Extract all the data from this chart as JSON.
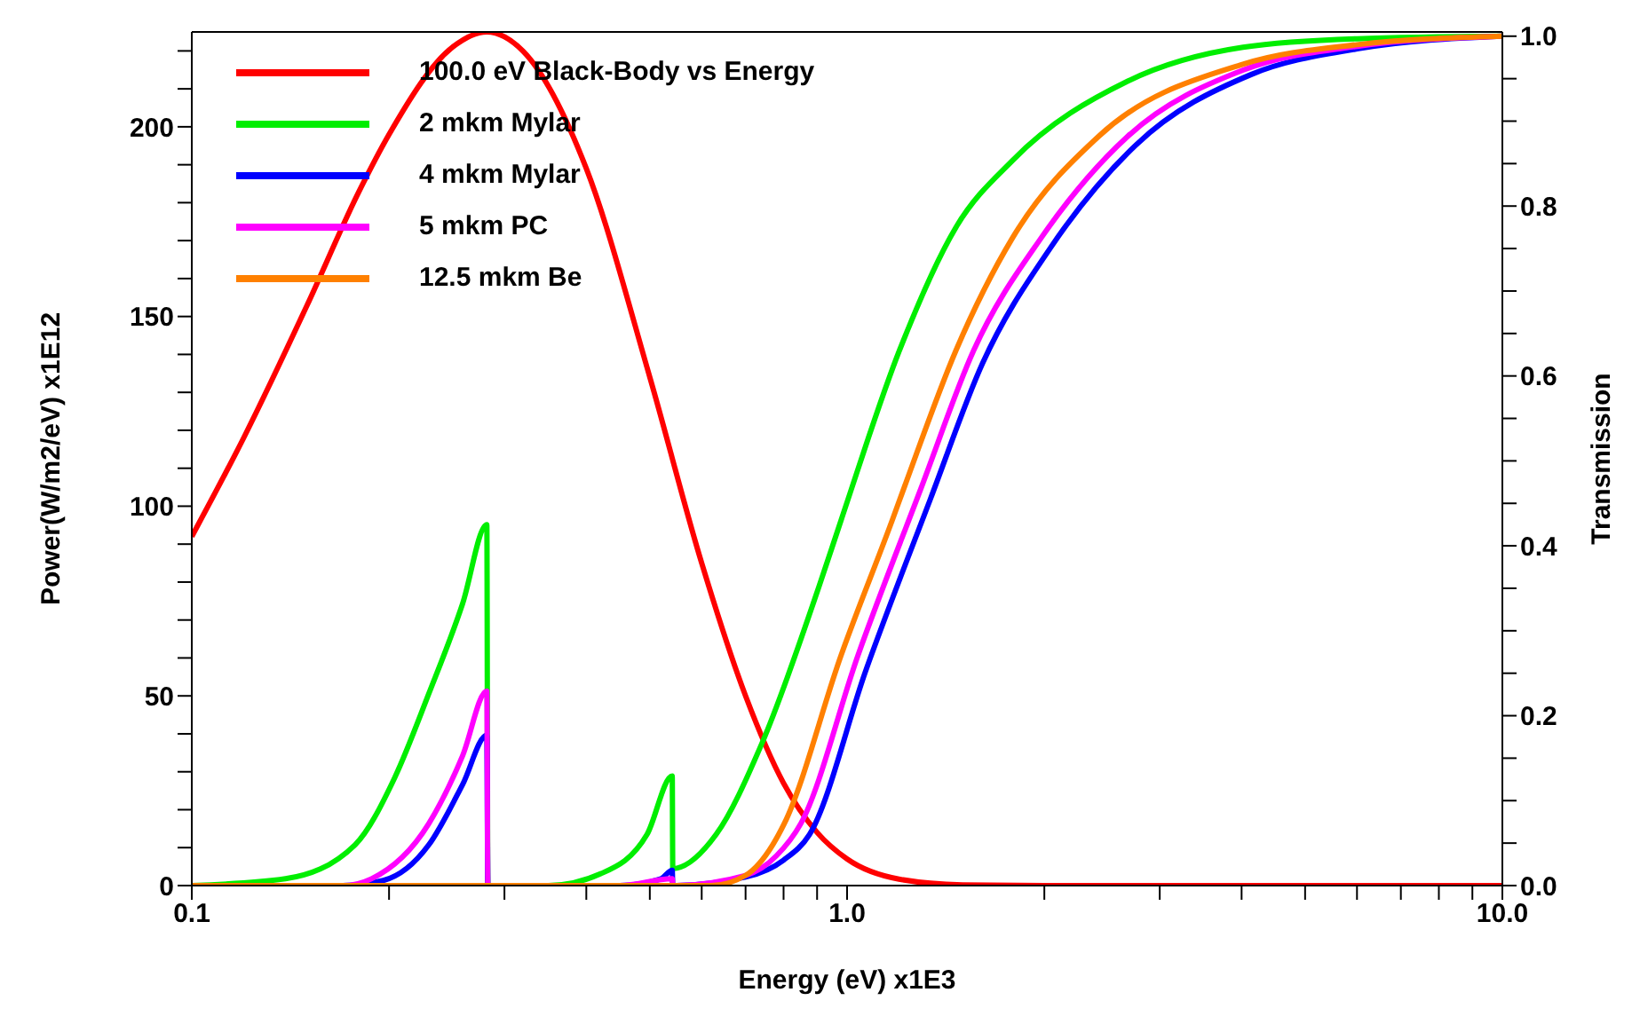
{
  "chart_data": {
    "type": "line",
    "xlabel": "Energy (eV) x1E3",
    "ylabel": "Power(W/m2/eV) x1E12",
    "y2label": "Transmission",
    "log": "x",
    "grid": false,
    "legend": "top left",
    "marker": "none",
    "line_style": "solid",
    "xlim": [
      0.1,
      10
    ],
    "xticks": [
      {
        "value": 0.1,
        "label": "0.1"
      },
      {
        "value": 0.2,
        "label": null
      },
      {
        "value": 0.3,
        "label": null
      },
      {
        "value": 0.4,
        "label": null
      },
      {
        "value": 0.5,
        "label": null
      },
      {
        "value": 0.6,
        "label": null
      },
      {
        "value": 0.7,
        "label": null
      },
      {
        "value": 0.8,
        "label": null
      },
      {
        "value": 0.9,
        "label": null
      },
      {
        "value": 1,
        "label": "1.0"
      },
      {
        "value": 2,
        "label": null
      },
      {
        "value": 3,
        "label": null
      },
      {
        "value": 4,
        "label": null
      },
      {
        "value": 5,
        "label": null
      },
      {
        "value": 6,
        "label": null
      },
      {
        "value": 7,
        "label": null
      },
      {
        "value": 8,
        "label": null
      },
      {
        "value": 9,
        "label": null
      },
      {
        "value": 10,
        "label": "10.0"
      }
    ],
    "ylim": [
      0,
      225
    ],
    "yticks": [
      0,
      {
        "value": 10,
        "label": null
      },
      {
        "value": 20,
        "label": null
      },
      {
        "value": 30,
        "label": null
      },
      {
        "value": 40,
        "label": null
      },
      50,
      {
        "value": 60,
        "label": null
      },
      {
        "value": 70,
        "label": null
      },
      {
        "value": 80,
        "label": null
      },
      {
        "value": 90,
        "label": null
      },
      100,
      {
        "value": 110,
        "label": null
      },
      {
        "value": 120,
        "label": null
      },
      {
        "value": 130,
        "label": null
      },
      {
        "value": 140,
        "label": null
      },
      150,
      {
        "value": 160,
        "label": null
      },
      {
        "value": 170,
        "label": null
      },
      {
        "value": 180,
        "label": null
      },
      {
        "value": 190,
        "label": null
      },
      200,
      {
        "value": 210,
        "label": null
      },
      {
        "value": 220,
        "label": null
      }
    ],
    "y2lim": [
      0,
      1.005
    ],
    "y2ticks": [
      {
        "value": 0,
        "label": "0.0"
      },
      {
        "value": 0.05,
        "label": null
      },
      {
        "value": 0.1,
        "label": null
      },
      {
        "value": 0.15,
        "label": null
      },
      {
        "value": 0.2,
        "label": "0.2"
      },
      {
        "value": 0.25,
        "label": null
      },
      {
        "value": 0.3,
        "label": null
      },
      {
        "value": 0.35,
        "label": null
      },
      {
        "value": 0.4,
        "label": "0.4"
      },
      {
        "value": 0.45,
        "label": null
      },
      {
        "value": 0.5,
        "label": null
      },
      {
        "value": 0.55,
        "label": null
      },
      {
        "value": 0.6,
        "label": "0.6"
      },
      {
        "value": 0.65,
        "label": null
      },
      {
        "value": 0.7,
        "label": null
      },
      {
        "value": 0.75,
        "label": null
      },
      {
        "value": 0.8,
        "label": "0.8"
      },
      {
        "value": 0.85,
        "label": null
      },
      {
        "value": 0.9,
        "label": null
      },
      {
        "value": 0.95,
        "label": null
      },
      {
        "value": 1,
        "label": "1.0"
      }
    ],
    "series": [
      {
        "name": "100.0 eV Black-Body vs Energy",
        "color": "#ff0000",
        "x": [
          0.1,
          0.12,
          0.15,
          0.18,
          0.2,
          0.25,
          0.282,
          0.32,
          0.4,
          0.5,
          0.6,
          0.7,
          0.8,
          0.9,
          1.0,
          1.2,
          1.5,
          2,
          10
        ],
        "values": [
          92,
          118,
          153,
          183,
          198,
          221,
          225,
          220,
          189,
          134,
          85,
          50,
          27,
          14,
          7,
          1.7,
          0.2,
          0,
          0
        ]
      },
      {
        "name": "2 mkm Mylar",
        "color": "#00ee00",
        "axis": "y2",
        "x": [
          0.1,
          0.139,
          0.1775,
          0.204,
          0.23,
          0.259,
          0.282,
          0.283,
          0.35,
          0.421,
          0.495,
          0.541,
          0.542,
          0.631,
          0.741,
          0.906,
          0.98,
          1.202,
          1.466,
          1.79,
          2.68,
          4.02,
          6,
          10
        ],
        "values": [
          0,
          0.008,
          0.048,
          0.127,
          0.226,
          0.332,
          0.425,
          0,
          0,
          0.014,
          0.06,
          0.129,
          0.02,
          0.06,
          0.167,
          0.352,
          0.431,
          0.63,
          0.775,
          0.854,
          0.947,
          0.987,
          0.997,
          1.0
        ]
      },
      {
        "name": "4 mkm Mylar",
        "color": "#0000ff",
        "axis": "y2",
        "x": [
          0.1,
          0.17,
          0.196,
          0.23,
          0.259,
          0.282,
          0.283,
          0.45,
          0.52,
          0.541,
          0.542,
          0.7,
          0.8,
          0.876,
          1.07,
          1.34,
          1.61,
          2.04,
          2.76,
          4.14,
          6,
          10
        ],
        "values": [
          0,
          0,
          0.006,
          0.048,
          0.119,
          0.177,
          0,
          0,
          0.008,
          0.018,
          0,
          0.01,
          0.03,
          0.06,
          0.255,
          0.455,
          0.615,
          0.75,
          0.872,
          0.955,
          0.985,
          1.0
        ]
      },
      {
        "name": "5 mkm PC",
        "color": "#ff00ff",
        "axis": "y2",
        "x": [
          0.1,
          0.17,
          0.188,
          0.23,
          0.259,
          0.282,
          0.283,
          0.45,
          0.541,
          0.542,
          0.7,
          0.78,
          0.85,
          1.04,
          1.3,
          1.56,
          1.98,
          2.68,
          4.02,
          6,
          10
        ],
        "values": [
          0,
          0,
          0.008,
          0.073,
          0.153,
          0.229,
          0,
          0,
          0.008,
          0,
          0.012,
          0.035,
          0.073,
          0.272,
          0.47,
          0.63,
          0.763,
          0.882,
          0.96,
          0.988,
          1.0
        ]
      },
      {
        "name": "12.5 mkm Be",
        "color": "#ff8000",
        "axis": "y2",
        "x": [
          0.1,
          0.62,
          0.7,
          0.77,
          0.802,
          0.98,
          1.173,
          1.224,
          1.466,
          1.79,
          2.42,
          4.02,
          6,
          10
        ],
        "values": [
          0,
          0,
          0.012,
          0.048,
          0.073,
          0.272,
          0.431,
          0.47,
          0.63,
          0.763,
          0.882,
          0.967,
          0.99,
          1.0
        ]
      }
    ]
  }
}
